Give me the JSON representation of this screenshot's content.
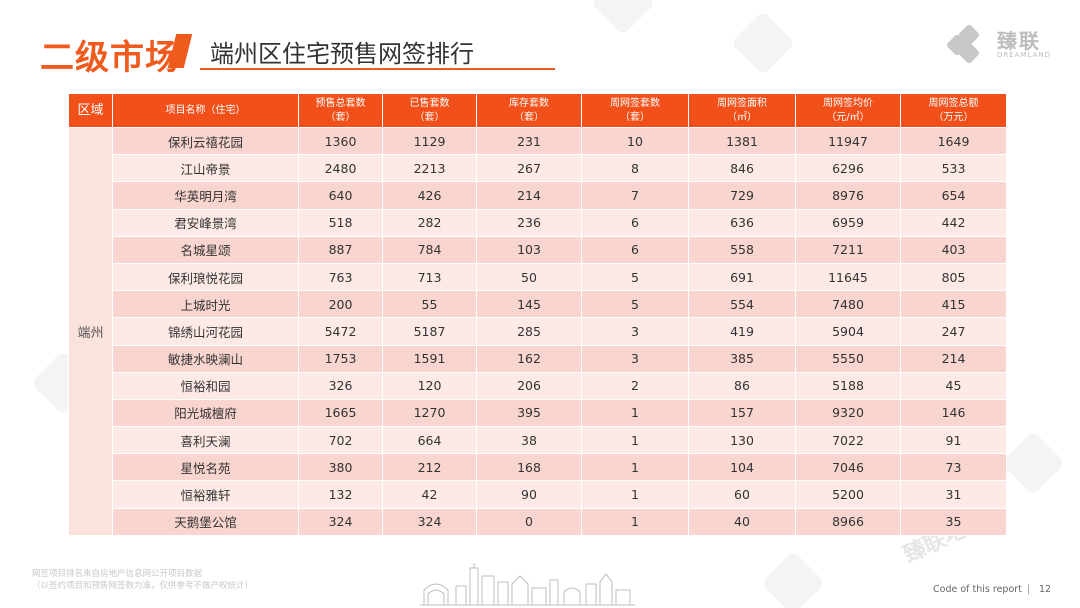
{
  "header": {
    "section_title": "二级市场",
    "slide_title": "端州区住宅预售网签排行"
  },
  "logo": {
    "name_cn": "臻联",
    "name_en": "DREAMLAND"
  },
  "watermark": {
    "text": "臻联地产"
  },
  "table": {
    "headers": [
      "区域",
      "项目名称（住宅）",
      "预售总套数\n（套）",
      "已售套数\n（套）",
      "库存套数\n（套）",
      "周网签套数\n（套）",
      "周网签面积\n（㎡）",
      "周网签均价\n（元/㎡）",
      "周网签总额\n（万元）"
    ],
    "region": "端州",
    "rows": [
      [
        "保利云禧花园",
        "1360",
        "1129",
        "231",
        "10",
        "1381",
        "11947",
        "1649"
      ],
      [
        "江山帝景",
        "2480",
        "2213",
        "267",
        "8",
        "846",
        "6296",
        "533"
      ],
      [
        "华英明月湾",
        "640",
        "426",
        "214",
        "7",
        "729",
        "8976",
        "654"
      ],
      [
        "君安峰景湾",
        "518",
        "282",
        "236",
        "6",
        "636",
        "6959",
        "442"
      ],
      [
        "名城星颂",
        "887",
        "784",
        "103",
        "6",
        "558",
        "7211",
        "403"
      ],
      [
        "保利琅悦花园",
        "763",
        "713",
        "50",
        "5",
        "691",
        "11645",
        "805"
      ],
      [
        "上城时光",
        "200",
        "55",
        "145",
        "5",
        "554",
        "7480",
        "415"
      ],
      [
        "锦绣山河花园",
        "5472",
        "5187",
        "285",
        "3",
        "419",
        "5904",
        "247"
      ],
      [
        "敏捷水映澜山",
        "1753",
        "1591",
        "162",
        "3",
        "385",
        "5550",
        "214"
      ],
      [
        "恒裕和园",
        "326",
        "120",
        "206",
        "2",
        "86",
        "5188",
        "45"
      ],
      [
        "阳光城檀府",
        "1665",
        "1270",
        "395",
        "1",
        "157",
        "9320",
        "146"
      ],
      [
        "喜利天澜",
        "702",
        "664",
        "38",
        "1",
        "130",
        "7022",
        "91"
      ],
      [
        "星悦名苑",
        "380",
        "212",
        "168",
        "1",
        "104",
        "7046",
        "73"
      ],
      [
        "恒裕雅轩",
        "132",
        "42",
        "90",
        "1",
        "60",
        "5200",
        "31"
      ],
      [
        "天鹅堡公馆",
        "324",
        "324",
        "0",
        "1",
        "40",
        "8966",
        "35"
      ]
    ]
  },
  "footnote": {
    "line1": "网签项目排名来自房地产信息网公开项目数据",
    "line2": "（以签约项目和预售网签数为准，仅供参考不做产权统计）"
  },
  "footer": {
    "code": "Code of this report",
    "separator": "|",
    "page": "12"
  },
  "colors": {
    "accent": "#f1501a",
    "row_odd": "#f9d5cf",
    "row_even": "#fdeae7"
  }
}
